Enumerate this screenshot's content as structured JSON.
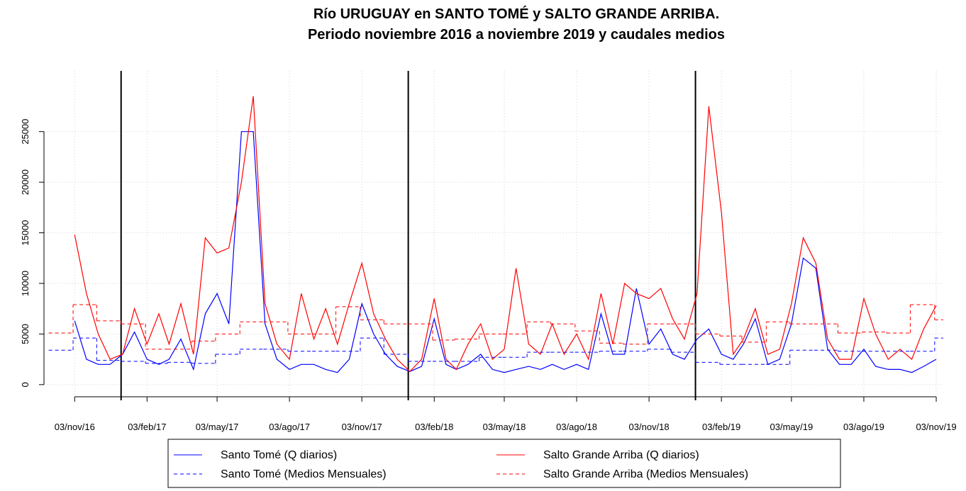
{
  "chart_data": {
    "type": "line",
    "title": "Río URUGUAY en SANTO TOMÉ y SALTO GRANDE ARRIBA.",
    "subtitle": "Periodo noviembre 2016 a noviembre 2019 y caudales medios",
    "x": [
      "2016-11-03",
      "2016-11-18",
      "2016-12-03",
      "2016-12-18",
      "2017-01-03",
      "2017-01-18",
      "2017-02-03",
      "2017-02-18",
      "2017-03-03",
      "2017-03-18",
      "2017-04-03",
      "2017-04-18",
      "2017-05-03",
      "2017-05-18",
      "2017-06-03",
      "2017-06-18",
      "2017-07-03",
      "2017-07-18",
      "2017-08-03",
      "2017-08-18",
      "2017-09-03",
      "2017-09-18",
      "2017-10-03",
      "2017-10-18",
      "2017-11-03",
      "2017-11-18",
      "2017-12-03",
      "2017-12-18",
      "2018-01-03",
      "2018-01-18",
      "2018-02-03",
      "2018-02-18",
      "2018-03-03",
      "2018-03-18",
      "2018-04-03",
      "2018-04-18",
      "2018-05-03",
      "2018-05-18",
      "2018-06-03",
      "2018-06-18",
      "2018-07-03",
      "2018-07-18",
      "2018-08-03",
      "2018-08-18",
      "2018-09-03",
      "2018-09-18",
      "2018-10-03",
      "2018-10-18",
      "2018-11-03",
      "2018-11-18",
      "2018-12-03",
      "2018-12-18",
      "2019-01-03",
      "2019-01-18",
      "2019-02-03",
      "2019-02-18",
      "2019-03-03",
      "2019-03-18",
      "2019-04-03",
      "2019-04-18",
      "2019-05-03",
      "2019-05-18",
      "2019-06-03",
      "2019-06-18",
      "2019-07-03",
      "2019-07-18",
      "2019-08-03",
      "2019-08-18",
      "2019-09-03",
      "2019-09-18",
      "2019-10-03",
      "2019-10-18",
      "2019-11-03"
    ],
    "series": [
      {
        "name": "Santo Tomé (Q diarios)",
        "color": "#0000ff",
        "dash": false,
        "values": [
          6300,
          2500,
          2000,
          2000,
          3000,
          5200,
          2500,
          2000,
          2500,
          4500,
          1500,
          7000,
          9000,
          6000,
          25000,
          25000,
          6000,
          2500,
          1500,
          2000,
          2000,
          1500,
          1200,
          2500,
          8000,
          5000,
          3000,
          1800,
          1300,
          1800,
          6500,
          2000,
          1500,
          2000,
          3000,
          1500,
          1200,
          1500,
          1800,
          1500,
          2000,
          1500,
          2000,
          1500,
          7000,
          3000,
          3000,
          9500,
          4000,
          5500,
          3000,
          2500,
          4500,
          5500,
          3000,
          2500,
          4000,
          6500,
          2000,
          2500,
          6000,
          12500,
          11500,
          3500,
          2000,
          2000,
          3500,
          1800,
          1500,
          1500,
          1200,
          1800,
          2500
        ]
      },
      {
        "name": "Salto Grande Arriba (Q diarios)",
        "color": "#ff0000",
        "dash": false,
        "values": [
          14800,
          9000,
          5000,
          2500,
          3000,
          7500,
          4000,
          7000,
          4000,
          8000,
          3000,
          14500,
          13000,
          13500,
          20000,
          28500,
          8000,
          4000,
          2500,
          9000,
          4500,
          7500,
          4000,
          8000,
          12000,
          7000,
          4500,
          2500,
          1300,
          2500,
          8500,
          2500,
          1500,
          4000,
          6000,
          2500,
          3500,
          11500,
          4000,
          3000,
          6000,
          3000,
          5000,
          2500,
          9000,
          4000,
          10000,
          9000,
          8500,
          9500,
          6500,
          4500,
          9000,
          27500,
          17000,
          3000,
          4500,
          7500,
          3000,
          3500,
          8000,
          14500,
          12000,
          4500,
          2500,
          2500,
          8500,
          5000,
          2500,
          3500,
          2500,
          5500,
          7800
        ]
      },
      {
        "name": "Santo Tomé (Medios Mensuales)",
        "color": "#0000ff",
        "dash": true,
        "x": [
          "2016-10-01",
          "2016-11-01",
          "2016-12-01",
          "2017-01-01",
          "2017-02-01",
          "2017-03-01",
          "2017-04-01",
          "2017-05-01",
          "2017-06-01",
          "2017-07-01",
          "2017-08-01",
          "2017-09-01",
          "2017-10-01",
          "2017-11-01",
          "2017-12-01",
          "2018-01-01",
          "2018-02-01",
          "2018-03-01",
          "2018-04-01",
          "2018-05-01",
          "2018-06-01",
          "2018-07-01",
          "2018-08-01",
          "2018-09-01",
          "2018-10-01",
          "2018-11-01",
          "2018-12-01",
          "2019-01-01",
          "2019-02-01",
          "2019-03-01",
          "2019-04-01",
          "2019-05-01",
          "2019-06-01",
          "2019-07-01",
          "2019-08-01",
          "2019-09-01",
          "2019-10-01",
          "2019-11-01"
        ],
        "values": [
          3400,
          4600,
          2400,
          2300,
          2100,
          2200,
          2100,
          3000,
          3500,
          3500,
          3300,
          3300,
          3300,
          4600,
          3000,
          2300,
          2300,
          2300,
          2700,
          2700,
          3200,
          3200,
          3200,
          3300,
          3300,
          3500,
          3200,
          2200,
          2000,
          2000,
          2000,
          3400,
          3400,
          3300,
          3300,
          3300,
          3300,
          4600
        ]
      },
      {
        "name": "Salto Grande Arriba (Medios Mensuales)",
        "color": "#ff0000",
        "dash": true,
        "x": [
          "2016-10-01",
          "2016-11-01",
          "2016-12-01",
          "2017-01-01",
          "2017-02-01",
          "2017-03-01",
          "2017-04-01",
          "2017-05-01",
          "2017-06-01",
          "2017-07-01",
          "2017-08-01",
          "2017-09-01",
          "2017-10-01",
          "2017-11-01",
          "2017-12-01",
          "2018-01-01",
          "2018-02-01",
          "2018-03-01",
          "2018-04-01",
          "2018-05-01",
          "2018-06-01",
          "2018-07-01",
          "2018-08-01",
          "2018-09-01",
          "2018-10-01",
          "2018-11-01",
          "2018-12-01",
          "2019-01-01",
          "2019-02-01",
          "2019-03-01",
          "2019-04-01",
          "2019-05-01",
          "2019-06-01",
          "2019-07-01",
          "2019-08-01",
          "2019-09-01",
          "2019-10-01",
          "2019-11-01"
        ],
        "values": [
          5100,
          7900,
          6300,
          6000,
          3500,
          3500,
          4300,
          5000,
          6200,
          6200,
          5000,
          5000,
          7700,
          6400,
          6000,
          6000,
          4400,
          4500,
          5000,
          5000,
          6200,
          6000,
          5300,
          4100,
          4000,
          6000,
          6000,
          5000,
          4800,
          4200,
          6200,
          6000,
          6000,
          5100,
          5200,
          5100,
          7900,
          6400
        ]
      }
    ],
    "vlines": [
      "2017-01-01",
      "2018-01-01",
      "2019-01-01"
    ],
    "xlim": [
      "2016-09-25",
      "2019-11-12"
    ],
    "xticks": [
      {
        "value": "2016-11-03",
        "label": "03/nov/16"
      },
      {
        "value": "2017-02-03",
        "label": "03/feb/17"
      },
      {
        "value": "2017-05-03",
        "label": "03/may/17"
      },
      {
        "value": "2017-08-03",
        "label": "03/ago/17"
      },
      {
        "value": "2017-11-03",
        "label": "03/nov/17"
      },
      {
        "value": "2018-02-03",
        "label": "03/feb/18"
      },
      {
        "value": "2018-05-03",
        "label": "03/may/18"
      },
      {
        "value": "2018-08-03",
        "label": "03/ago/18"
      },
      {
        "value": "2018-11-03",
        "label": "03/nov/18"
      },
      {
        "value": "2019-02-03",
        "label": "03/feb/19"
      },
      {
        "value": "2019-05-03",
        "label": "03/may/19"
      },
      {
        "value": "2019-08-03",
        "label": "03/ago/19"
      },
      {
        "value": "2019-11-03",
        "label": "03/nov/19"
      }
    ],
    "ylim": [
      -1200,
      31000
    ],
    "yticks": [
      0,
      5000,
      10000,
      15000,
      20000,
      25000
    ],
    "grid": true
  }
}
